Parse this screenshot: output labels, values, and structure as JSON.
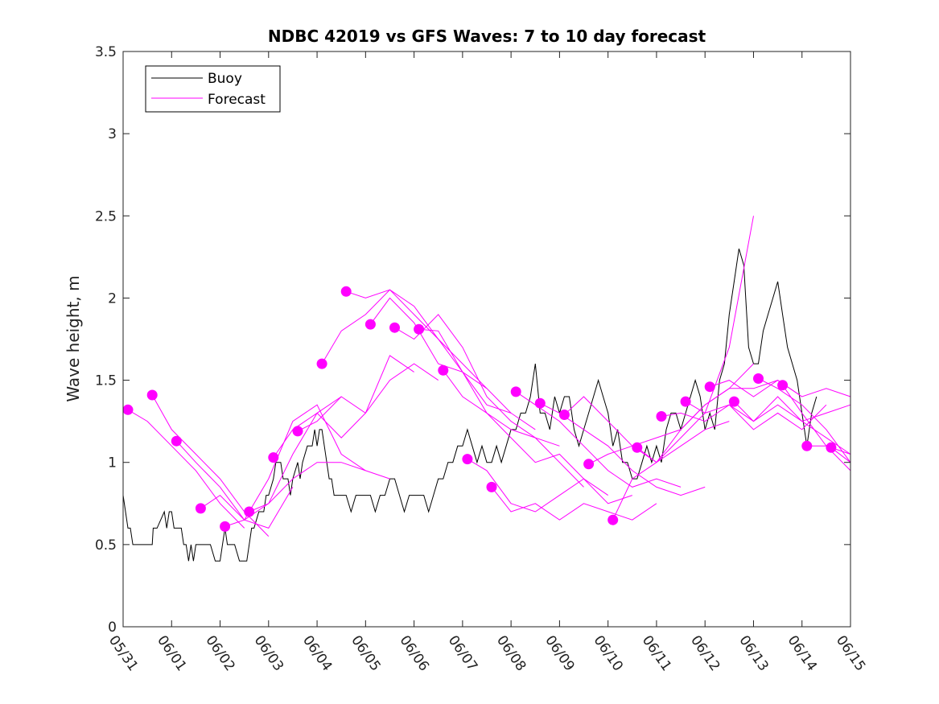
{
  "chart_data": {
    "type": "line",
    "title": "NDBC 42019 vs GFS Waves: 7 to 10 day forecast",
    "xlabel": "",
    "ylabel": "Wave height, m",
    "xlim": [
      0,
      15
    ],
    "ylim": [
      0,
      3.5
    ],
    "x_ticks": [
      0,
      1,
      2,
      3,
      4,
      5,
      6,
      7,
      8,
      9,
      10,
      11,
      12,
      13,
      14,
      15
    ],
    "x_tick_labels": [
      "05/31",
      "06/01",
      "06/02",
      "06/03",
      "06/04",
      "06/05",
      "06/06",
      "06/07",
      "06/08",
      "06/09",
      "06/10",
      "06/11",
      "06/12",
      "06/13",
      "06/14",
      "06/15"
    ],
    "y_ticks": [
      0,
      0.5,
      1,
      1.5,
      2,
      2.5,
      3,
      3.5
    ],
    "y_tick_labels": [
      "0",
      "0.5",
      "1",
      "1.5",
      "2",
      "2.5",
      "3",
      "3.5"
    ],
    "grid": false,
    "legend": {
      "position": "top-left",
      "entries": [
        "Buoy",
        "Forecast"
      ]
    },
    "colors": {
      "buoy": "#000000",
      "forecast": "#ff00ff"
    },
    "series": [
      {
        "name": "Buoy",
        "x": [
          0,
          0.05,
          0.1,
          0.15,
          0.2,
          0.3,
          0.5,
          0.6,
          0.62,
          0.7,
          0.85,
          0.9,
          0.95,
          1.0,
          1.05,
          1.1,
          1.2,
          1.25,
          1.3,
          1.35,
          1.4,
          1.45,
          1.5,
          1.55,
          1.6,
          1.7,
          1.8,
          1.9,
          2.0,
          2.05,
          2.1,
          2.15,
          2.2,
          2.3,
          2.4,
          2.5,
          2.55,
          2.6,
          2.65,
          2.7,
          2.8,
          2.9,
          2.95,
          3.0,
          3.1,
          3.15,
          3.25,
          3.3,
          3.4,
          3.45,
          3.5,
          3.6,
          3.65,
          3.7,
          3.8,
          3.9,
          3.95,
          4.0,
          4.05,
          4.1,
          4.15,
          4.2,
          4.25,
          4.3,
          4.35,
          4.4,
          4.5,
          4.6,
          4.7,
          4.8,
          4.9,
          5.0,
          5.1,
          5.2,
          5.3,
          5.4,
          5.5,
          5.6,
          5.7,
          5.8,
          5.9,
          6.0,
          6.1,
          6.2,
          6.3,
          6.4,
          6.5,
          6.6,
          6.7,
          6.8,
          6.9,
          7.0,
          7.1,
          7.2,
          7.3,
          7.4,
          7.5,
          7.6,
          7.7,
          7.8,
          7.9,
          8.0,
          8.1,
          8.2,
          8.3,
          8.4,
          8.5,
          8.6,
          8.7,
          8.8,
          8.9,
          9.0,
          9.1,
          9.2,
          9.3,
          9.4,
          9.5,
          9.6,
          9.7,
          9.8,
          9.9,
          10.0,
          10.1,
          10.2,
          10.3,
          10.4,
          10.5,
          10.6,
          10.7,
          10.8,
          10.9,
          11.0,
          11.1,
          11.2,
          11.3,
          11.4,
          11.5,
          11.6,
          11.7,
          11.8,
          11.9,
          12.0,
          12.1,
          12.2,
          12.3,
          12.4,
          12.5,
          12.6,
          12.7,
          12.8,
          12.9,
          13.0,
          13.1,
          13.2,
          13.3,
          13.4,
          13.5,
          13.6,
          13.7,
          13.8,
          13.9,
          14.0,
          14.1,
          14.2,
          14.3
        ],
        "y": [
          0.8,
          0.7,
          0.6,
          0.6,
          0.5,
          0.5,
          0.5,
          0.5,
          0.6,
          0.6,
          0.7,
          0.6,
          0.7,
          0.7,
          0.6,
          0.6,
          0.6,
          0.5,
          0.5,
          0.4,
          0.5,
          0.4,
          0.5,
          0.5,
          0.5,
          0.5,
          0.5,
          0.4,
          0.4,
          0.5,
          0.6,
          0.5,
          0.5,
          0.5,
          0.4,
          0.4,
          0.4,
          0.5,
          0.6,
          0.6,
          0.7,
          0.7,
          0.8,
          0.8,
          0.9,
          1.0,
          1.0,
          0.9,
          0.9,
          0.8,
          0.9,
          1.0,
          0.9,
          1.0,
          1.1,
          1.1,
          1.2,
          1.1,
          1.2,
          1.2,
          1.1,
          1.0,
          0.9,
          0.9,
          0.8,
          0.8,
          0.8,
          0.8,
          0.7,
          0.8,
          0.8,
          0.8,
          0.8,
          0.7,
          0.8,
          0.8,
          0.9,
          0.9,
          0.8,
          0.7,
          0.8,
          0.8,
          0.8,
          0.8,
          0.7,
          0.8,
          0.9,
          0.9,
          1.0,
          1.0,
          1.1,
          1.1,
          1.2,
          1.1,
          1.0,
          1.1,
          1.0,
          1.0,
          1.1,
          1.0,
          1.1,
          1.2,
          1.2,
          1.3,
          1.3,
          1.4,
          1.6,
          1.3,
          1.3,
          1.2,
          1.4,
          1.3,
          1.4,
          1.4,
          1.2,
          1.1,
          1.2,
          1.3,
          1.4,
          1.5,
          1.4,
          1.3,
          1.1,
          1.2,
          1.0,
          1.0,
          0.9,
          0.9,
          1.0,
          1.1,
          1.0,
          1.1,
          1.0,
          1.2,
          1.3,
          1.3,
          1.2,
          1.3,
          1.4,
          1.5,
          1.4,
          1.2,
          1.3,
          1.2,
          1.5,
          1.6,
          1.9,
          2.1,
          2.3,
          2.2,
          1.7,
          1.6,
          1.6,
          1.8,
          1.9,
          2.0,
          2.1,
          1.9,
          1.7,
          1.6,
          1.5,
          1.3,
          1.1,
          1.3,
          1.4
        ]
      },
      {
        "name": "Forecast",
        "runs": [
          {
            "x": [
              0.1,
              0.5,
              1.0,
              1.5,
              2.0,
              2.5
            ],
            "y": [
              1.32,
              1.25,
              1.1,
              0.95,
              0.75,
              0.6
            ]
          },
          {
            "x": [
              0.6,
              1.0,
              1.5,
              2.0,
              2.5,
              3.0
            ],
            "y": [
              1.41,
              1.2,
              1.05,
              0.9,
              0.7,
              0.55
            ]
          },
          {
            "x": [
              1.1,
              1.5,
              2.0,
              2.5,
              3.0,
              3.5
            ],
            "y": [
              1.13,
              1.0,
              0.85,
              0.65,
              0.6,
              0.85
            ]
          },
          {
            "x": [
              1.6,
              2.0,
              2.5,
              3.0,
              3.5,
              4.0,
              4.5
            ],
            "y": [
              0.72,
              0.8,
              0.65,
              0.75,
              1.05,
              1.3,
              1.4
            ]
          },
          {
            "x": [
              2.1,
              2.5,
              3.0,
              3.5,
              4.0,
              4.5,
              5.0
            ],
            "y": [
              0.61,
              0.65,
              0.9,
              1.25,
              1.35,
              1.05,
              0.95
            ]
          },
          {
            "x": [
              2.6,
              3.0,
              3.5,
              4.0,
              4.5,
              5.0,
              5.5
            ],
            "y": [
              0.7,
              0.75,
              0.9,
              1.0,
              1.0,
              0.95,
              0.9
            ]
          },
          {
            "x": [
              3.1,
              3.5,
              4.0,
              4.5,
              5.0,
              5.5,
              6.0,
              6.5
            ],
            "y": [
              1.03,
              1.2,
              1.3,
              1.15,
              1.3,
              1.5,
              1.6,
              1.5
            ]
          },
          {
            "x": [
              3.6,
              4.0,
              4.5,
              5.0,
              5.5,
              6.0
            ],
            "y": [
              1.19,
              1.25,
              1.4,
              1.3,
              1.65,
              1.55
            ]
          },
          {
            "x": [
              4.1,
              4.5,
              5.0,
              5.5,
              6.0,
              6.5,
              7.0,
              7.5
            ],
            "y": [
              1.6,
              1.8,
              1.9,
              2.05,
              1.95,
              1.75,
              1.6,
              1.45
            ]
          },
          {
            "x": [
              4.6,
              5.0,
              5.5,
              6.0,
              6.5,
              7.0,
              7.5,
              8.0
            ],
            "y": [
              2.04,
              2.0,
              2.05,
              1.9,
              1.75,
              1.55,
              1.45,
              1.3
            ]
          },
          {
            "x": [
              5.1,
              5.5,
              6.0,
              6.5,
              7.0,
              7.5,
              8.0,
              8.5
            ],
            "y": [
              1.84,
              2.0,
              1.85,
              1.6,
              1.55,
              1.35,
              1.3,
              1.2
            ]
          },
          {
            "x": [
              5.6,
              6.0,
              6.5,
              7.0,
              7.5,
              8.0,
              8.5,
              9.0
            ],
            "y": [
              1.82,
              1.75,
              1.9,
              1.7,
              1.4,
              1.25,
              1.15,
              1.1
            ]
          },
          {
            "x": [
              6.1,
              6.5,
              7.0,
              7.5,
              8.0,
              8.5,
              9.0,
              9.5
            ],
            "y": [
              1.81,
              1.8,
              1.55,
              1.3,
              1.2,
              1.15,
              1.0,
              0.85
            ]
          },
          {
            "x": [
              6.6,
              7.0,
              7.5,
              8.0,
              8.5,
              9.0,
              9.5,
              10.0
            ],
            "y": [
              1.56,
              1.4,
              1.3,
              1.15,
              1.0,
              1.05,
              0.9,
              0.8
            ]
          },
          {
            "x": [
              7.1,
              7.5,
              8.0,
              8.5,
              9.0,
              9.5,
              10.0,
              10.5
            ],
            "y": [
              1.02,
              0.95,
              0.75,
              0.7,
              0.8,
              0.9,
              0.75,
              0.8
            ]
          },
          {
            "x": [
              7.6,
              8.0,
              8.5,
              9.0,
              9.5,
              10.0,
              10.5,
              11.0
            ],
            "y": [
              0.85,
              0.7,
              0.75,
              0.65,
              0.75,
              0.7,
              0.65,
              0.75
            ]
          },
          {
            "x": [
              8.1,
              8.5,
              9.0,
              9.5,
              10.0,
              10.5,
              11.0,
              11.5
            ],
            "y": [
              1.43,
              1.35,
              1.25,
              1.1,
              0.95,
              0.85,
              0.9,
              0.85
            ]
          },
          {
            "x": [
              8.6,
              9.0,
              9.5,
              10.0,
              10.5,
              11.0,
              11.5,
              12.0
            ],
            "y": [
              1.36,
              1.3,
              1.2,
              1.1,
              0.95,
              0.85,
              0.8,
              0.85
            ]
          },
          {
            "x": [
              9.1,
              9.5,
              10.0,
              10.5,
              11.0,
              11.5,
              12.0,
              12.5
            ],
            "y": [
              1.29,
              1.4,
              1.25,
              1.1,
              1.0,
              1.1,
              1.2,
              1.25
            ]
          },
          {
            "x": [
              9.6,
              10.0,
              10.5,
              11.0,
              11.5,
              12.0,
              12.5,
              13.0
            ],
            "y": [
              0.99,
              1.05,
              1.1,
              1.15,
              1.2,
              1.35,
              1.45,
              1.6
            ]
          },
          {
            "x": [
              10.1,
              10.5,
              11.0,
              11.5,
              12.0,
              12.5,
              13.0
            ],
            "y": [
              0.65,
              0.9,
              1.0,
              1.15,
              1.3,
              1.7,
              2.5
            ]
          },
          {
            "x": [
              10.6,
              11.0,
              11.5,
              12.0,
              12.5,
              13.0,
              13.5,
              14.0
            ],
            "y": [
              1.09,
              1.0,
              1.2,
              1.35,
              1.45,
              1.45,
              1.5,
              1.4
            ]
          },
          {
            "x": [
              11.1,
              11.5,
              12.0,
              12.5,
              13.0,
              13.5,
              14.0,
              14.5
            ],
            "y": [
              1.28,
              1.3,
              1.25,
              1.35,
              1.2,
              1.3,
              1.2,
              1.35
            ]
          },
          {
            "x": [
              11.6,
              12.0,
              12.5,
              13.0,
              13.5,
              14.0,
              14.5,
              15.0
            ],
            "y": [
              1.37,
              1.3,
              1.35,
              1.25,
              1.35,
              1.25,
              1.3,
              1.35
            ]
          },
          {
            "x": [
              12.1,
              12.5,
              13.0,
              13.5,
              14.0,
              14.5,
              15.0
            ],
            "y": [
              1.46,
              1.5,
              1.4,
              1.5,
              1.4,
              1.45,
              1.4
            ]
          },
          {
            "x": [
              12.6,
              13.0,
              13.5,
              14.0,
              14.5,
              15.0
            ],
            "y": [
              1.37,
              1.25,
              1.4,
              1.25,
              1.15,
              1.05
            ]
          },
          {
            "x": [
              13.1,
              13.5,
              14.0,
              14.5,
              15.0
            ],
            "y": [
              1.51,
              1.45,
              1.35,
              1.2,
              1.0
            ]
          },
          {
            "x": [
              13.6,
              14.0,
              14.5,
              15.0
            ],
            "y": [
              1.47,
              1.3,
              1.1,
              0.95
            ]
          },
          {
            "x": [
              14.1,
              14.5,
              15.0
            ],
            "y": [
              1.1,
              1.1,
              1.05
            ]
          },
          {
            "x": [
              14.6,
              15.0
            ],
            "y": [
              1.09,
              1.0
            ]
          }
        ]
      }
    ]
  }
}
